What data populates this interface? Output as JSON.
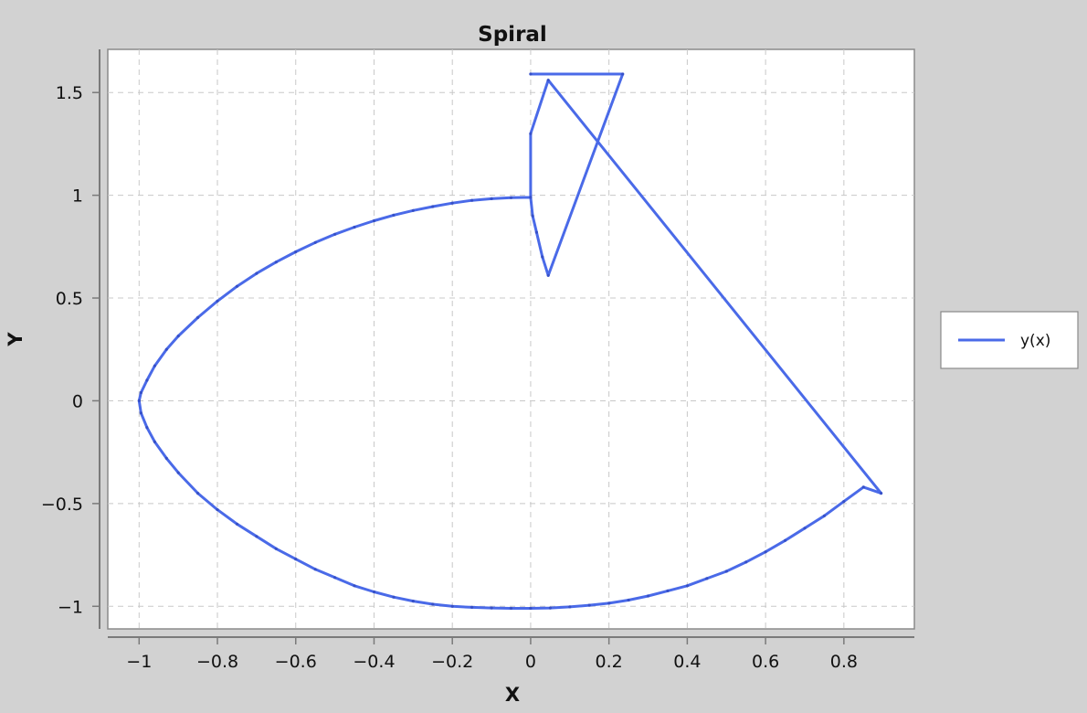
{
  "chart_data": {
    "type": "line",
    "title": "Spiral",
    "xlabel": "X",
    "ylabel": "Y",
    "xlim": [
      -1.08,
      0.98
    ],
    "ylim": [
      -1.11,
      1.71
    ],
    "x_ticks": [
      -1,
      -0.8,
      -0.6,
      -0.4,
      -0.2,
      0,
      0.2,
      0.4,
      0.6,
      0.8
    ],
    "x_tick_labels": [
      "−1",
      "−0.8",
      "−0.6",
      "−0.4",
      "−0.2",
      "0",
      "0.2",
      "0.4",
      "0.6",
      "0.8"
    ],
    "y_ticks": [
      -1,
      -0.5,
      0,
      0.5,
      1,
      1.5
    ],
    "y_tick_labels": [
      "−1",
      "−0.5",
      "0",
      "0.5",
      "1",
      "1.5"
    ],
    "grid": true,
    "legend": "right",
    "series": [
      {
        "name": "y(x)",
        "color": "#4a6ae8",
        "x": [
          0.0,
          -0.05,
          -0.1,
          -0.15,
          -0.2,
          -0.25,
          -0.3,
          -0.35,
          -0.4,
          -0.45,
          -0.5,
          -0.55,
          -0.6,
          -0.65,
          -0.7,
          -0.75,
          -0.8,
          -0.85,
          -0.9,
          -0.93,
          -0.96,
          -0.98,
          -0.995,
          -1.0,
          -0.995,
          -0.98,
          -0.96,
          -0.93,
          -0.9,
          -0.85,
          -0.8,
          -0.75,
          -0.7,
          -0.65,
          -0.6,
          -0.55,
          -0.5,
          -0.45,
          -0.4,
          -0.35,
          -0.3,
          -0.25,
          -0.2,
          -0.15,
          -0.1,
          -0.05,
          0.0,
          0.05,
          0.1,
          0.15,
          0.2,
          0.25,
          0.3,
          0.35,
          0.4,
          0.45,
          0.5,
          0.55,
          0.6,
          0.65,
          0.7,
          0.75,
          0.8,
          0.85,
          0.895,
          0.045,
          0.0,
          0.0,
          0.005,
          0.015,
          0.03,
          0.045,
          0.235,
          0.0
        ],
        "y": [
          0.99,
          0.988,
          0.983,
          0.975,
          0.962,
          0.945,
          0.926,
          0.903,
          0.876,
          0.845,
          0.81,
          0.77,
          0.725,
          0.675,
          0.62,
          0.557,
          0.485,
          0.405,
          0.315,
          0.25,
          0.17,
          0.1,
          0.04,
          0.0,
          -0.06,
          -0.13,
          -0.2,
          -0.28,
          -0.35,
          -0.45,
          -0.53,
          -0.6,
          -0.66,
          -0.72,
          -0.77,
          -0.82,
          -0.86,
          -0.9,
          -0.93,
          -0.955,
          -0.975,
          -0.99,
          -1.0,
          -1.005,
          -1.008,
          -1.01,
          -1.01,
          -1.008,
          -1.003,
          -0.995,
          -0.985,
          -0.97,
          -0.95,
          -0.925,
          -0.9,
          -0.865,
          -0.83,
          -0.785,
          -0.735,
          -0.68,
          -0.62,
          -0.56,
          -0.49,
          -0.42,
          -0.45,
          1.56,
          1.3,
          0.99,
          0.9,
          0.82,
          0.7,
          0.61,
          1.59,
          1.59
        ]
      }
    ]
  }
}
